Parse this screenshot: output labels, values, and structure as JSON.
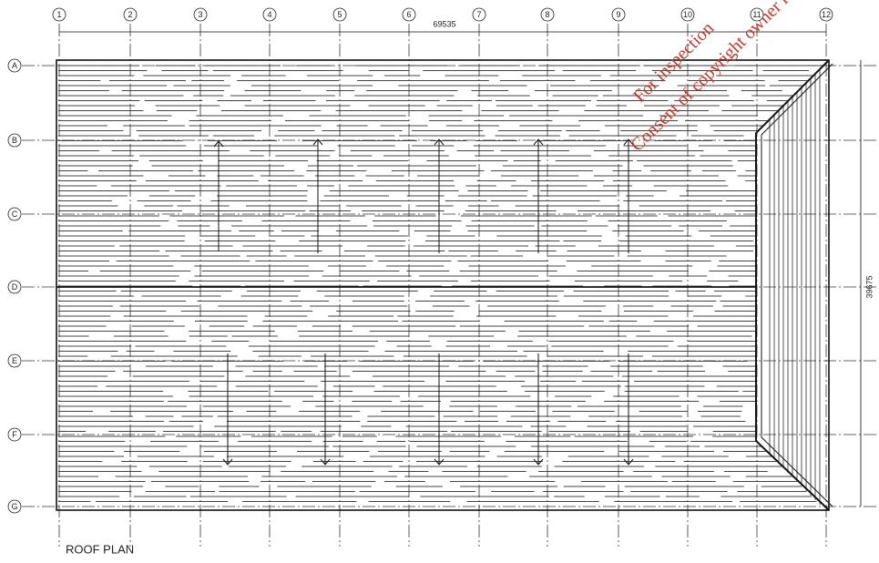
{
  "columns": [
    "1",
    "2",
    "3",
    "4",
    "5",
    "6",
    "7",
    "8",
    "9",
    "10",
    "11",
    "12"
  ],
  "rows": [
    "A",
    "B",
    "C",
    "D",
    "E",
    "F",
    "G"
  ],
  "dimensions": {
    "width": "69535",
    "depth": "39675"
  },
  "title": "ROOF PLAN",
  "watermark": [
    "For inspection",
    "Consent of copyright owner r"
  ]
}
